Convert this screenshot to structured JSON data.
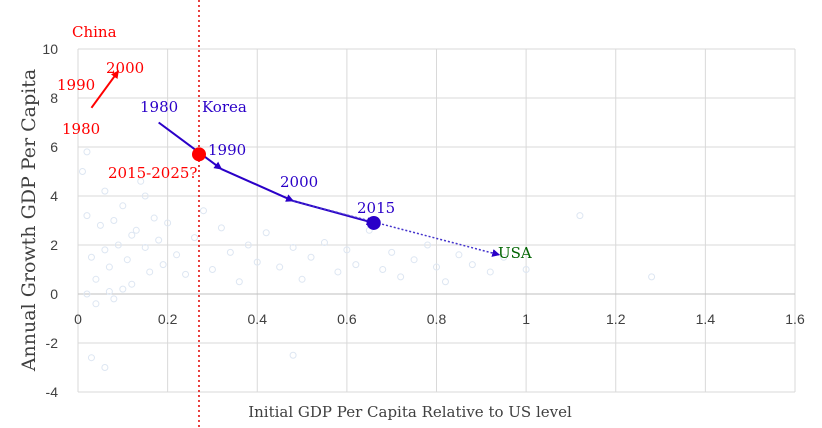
{
  "chart_data": {
    "type": "scatter",
    "title": "",
    "xlabel": "Initial GDP Per Capita  Relative to US level",
    "ylabel": "Annual Growth GDP Per Capita",
    "xlim": [
      0,
      1.6
    ],
    "ylim": [
      -4,
      10
    ],
    "x_ticks": [
      "0",
      "0.2",
      "0.4",
      "0.6",
      "0.8",
      "1",
      "1.2",
      "1.4",
      "1.6"
    ],
    "y_ticks": [
      "-4",
      "-2",
      "0",
      "2",
      "4",
      "6",
      "8",
      "10"
    ],
    "grid": true,
    "colors": {
      "china": "#ff0000",
      "korea": "#2a00c8",
      "usa": "#006400",
      "background_points": "#dde6f2",
      "grid": "#d9d9d9"
    },
    "background_points": [
      [
        0.01,
        5.0
      ],
      [
        0.02,
        3.2
      ],
      [
        0.03,
        1.5
      ],
      [
        0.04,
        0.6
      ],
      [
        0.05,
        2.8
      ],
      [
        0.06,
        4.2
      ],
      [
        0.07,
        1.1
      ],
      [
        0.08,
        -0.2
      ],
      [
        0.09,
        2.0
      ],
      [
        0.1,
        3.6
      ],
      [
        0.11,
        1.4
      ],
      [
        0.12,
        0.4
      ],
      [
        0.13,
        2.6
      ],
      [
        0.14,
        4.6
      ],
      [
        0.15,
        1.9
      ],
      [
        0.16,
        0.9
      ],
      [
        0.17,
        3.1
      ],
      [
        0.18,
        2.2
      ],
      [
        0.02,
        5.8
      ],
      [
        0.04,
        -0.4
      ],
      [
        0.06,
        1.8
      ],
      [
        0.08,
        3.0
      ],
      [
        0.1,
        0.2
      ],
      [
        0.12,
        2.4
      ],
      [
        0.19,
        1.2
      ],
      [
        0.2,
        2.9
      ],
      [
        0.22,
        1.6
      ],
      [
        0.24,
        0.8
      ],
      [
        0.26,
        2.3
      ],
      [
        0.28,
        3.4
      ],
      [
        0.3,
        1.0
      ],
      [
        0.32,
        2.7
      ],
      [
        0.34,
        1.7
      ],
      [
        0.36,
        0.5
      ],
      [
        0.38,
        2.0
      ],
      [
        0.4,
        1.3
      ],
      [
        0.42,
        2.5
      ],
      [
        0.45,
        1.1
      ],
      [
        0.48,
        1.9
      ],
      [
        0.5,
        0.6
      ],
      [
        0.52,
        1.5
      ],
      [
        0.55,
        2.1
      ],
      [
        0.58,
        0.9
      ],
      [
        0.6,
        1.8
      ],
      [
        0.62,
        1.2
      ],
      [
        0.65,
        2.6
      ],
      [
        0.68,
        1.0
      ],
      [
        0.7,
        1.7
      ],
      [
        0.72,
        0.7
      ],
      [
        0.75,
        1.4
      ],
      [
        0.78,
        2.0
      ],
      [
        0.8,
        1.1
      ],
      [
        0.82,
        0.5
      ],
      [
        0.85,
        1.6
      ],
      [
        0.88,
        1.2
      ],
      [
        0.92,
        0.9
      ],
      [
        0.95,
        1.5
      ],
      [
        1.0,
        1.0
      ],
      [
        1.12,
        3.2
      ],
      [
        1.28,
        0.7
      ],
      [
        0.03,
        -2.6
      ],
      [
        0.06,
        -3.0
      ],
      [
        0.48,
        -2.5
      ],
      [
        0.02,
        0.0
      ],
      [
        0.07,
        0.1
      ],
      [
        0.15,
        4.0
      ]
    ],
    "china": {
      "name": "China",
      "points": [
        {
          "label": "1980",
          "x": 0.03,
          "y": 7.6
        },
        {
          "label": "1990",
          "x": 0.05,
          "y": 8.2
        },
        {
          "label": "2000",
          "x": 0.09,
          "y": 9.1
        },
        {
          "label": "2015-2025?",
          "x": 0.27,
          "y": 5.7
        }
      ]
    },
    "korea": {
      "name": "Korea",
      "points": [
        {
          "label": "1980",
          "x": 0.18,
          "y": 7.0
        },
        {
          "label": "1990",
          "x": 0.32,
          "y": 5.1
        },
        {
          "label": "2000",
          "x": 0.48,
          "y": 3.8
        },
        {
          "label": "2015",
          "x": 0.66,
          "y": 2.9
        }
      ]
    },
    "usa": {
      "name": "USA",
      "points": [
        {
          "label": "USA",
          "x": 0.94,
          "y": 1.6
        }
      ]
    },
    "vertical_line_x": 0.27
  }
}
